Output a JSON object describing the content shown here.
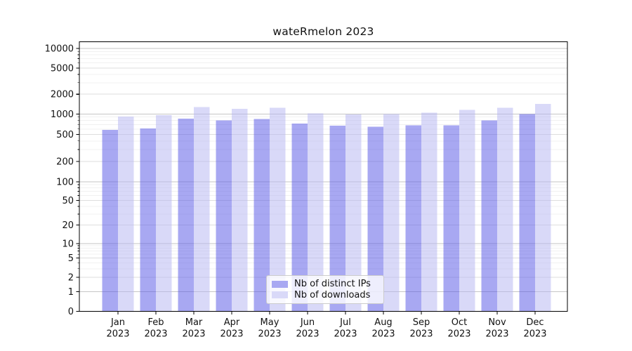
{
  "title": "wateRmelon 2023",
  "chart_data": {
    "type": "bar",
    "title": "wateRmelon 2023",
    "scale": "symlog",
    "grid": true,
    "legend_position": "lower center",
    "months": [
      "Jan",
      "Feb",
      "Mar",
      "Apr",
      "May",
      "Jun",
      "Jul",
      "Aug",
      "Sep",
      "Oct",
      "Nov",
      "Dec"
    ],
    "year_label": "2023",
    "categories": [
      "Jan 2023",
      "Feb 2023",
      "Mar 2023",
      "Apr 2023",
      "May 2023",
      "Jun 2023",
      "Jul 2023",
      "Aug 2023",
      "Sep 2023",
      "Oct 2023",
      "Nov 2023",
      "Dec 2023"
    ],
    "series": [
      {
        "name": "Nb of distinct IPs",
        "color": "#a8a8f2",
        "values": [
          580,
          610,
          850,
          800,
          840,
          720,
          670,
          650,
          680,
          680,
          800,
          1000
        ]
      },
      {
        "name": "Nb of downloads",
        "color": "#d9d9f8",
        "values": [
          920,
          960,
          1270,
          1200,
          1250,
          1020,
          980,
          1000,
          1050,
          1150,
          1250,
          1420
        ]
      }
    ],
    "y_ticks": [
      0,
      1,
      2,
      5,
      10,
      20,
      50,
      100,
      200,
      500,
      1000,
      2000,
      5000,
      10000
    ],
    "ylim": [
      0,
      12500
    ],
    "colors": {
      "bar_ips": "#a8a8f2",
      "bar_downloads": "#d9d9f8",
      "grid_major": "#c6c6c6",
      "grid_labeled": "#dedede",
      "grid_minor": "#f1f1f1",
      "axis": "#000000"
    }
  }
}
